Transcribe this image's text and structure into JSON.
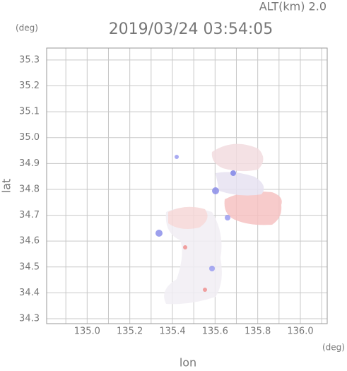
{
  "chart_data": {
    "type": "map",
    "title": "2019/03/24 03:54:05",
    "subtitle": "ALT(km) 2.0",
    "y_unit": "(deg)",
    "x_unit": "(deg)",
    "xlabel": "lon",
    "ylabel": "lat",
    "xlim": [
      134.81,
      136.126
    ],
    "ylim": [
      34.281,
      35.346
    ],
    "xticks": [
      {
        "value": 135,
        "label": "135.0"
      },
      135.2,
      135.4,
      135.6,
      135.8,
      {
        "value": 136,
        "label": "136.0"
      }
    ],
    "xminor": [
      134.9,
      135.1,
      135.3,
      135.5,
      135.7,
      135.9,
      136.1
    ],
    "yticks": [
      34.3,
      34.4,
      34.5,
      34.6,
      34.7,
      34.8,
      34.9,
      {
        "value": 35,
        "label": "35.0"
      },
      35.1,
      35.2,
      35.3
    ],
    "grid": true
  }
}
